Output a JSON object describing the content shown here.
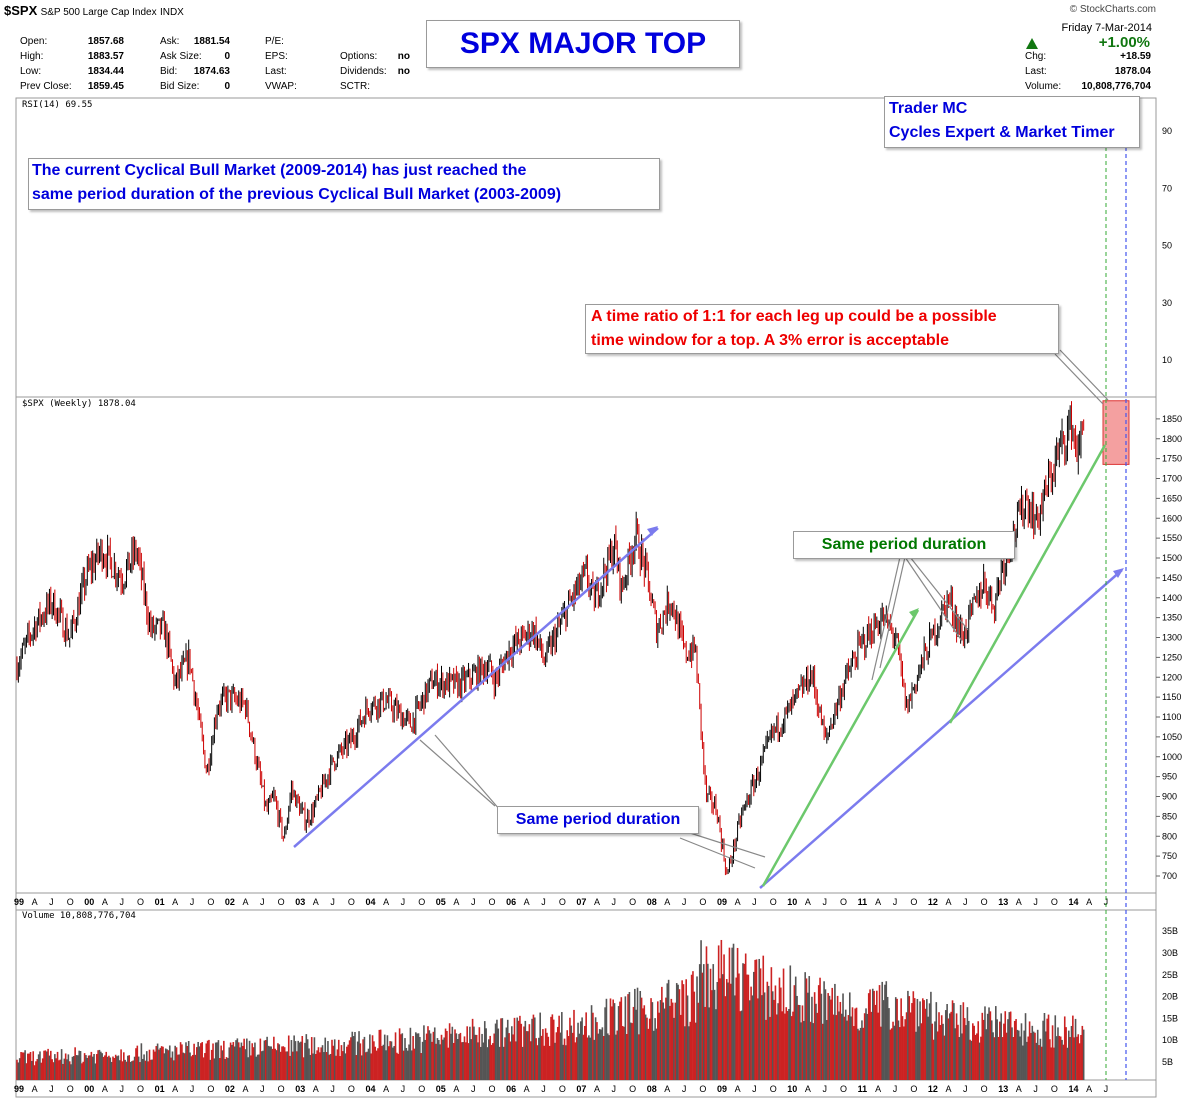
{
  "header": {
    "symbol": "$SPX",
    "name": "S&P 500 Large Cap Index",
    "exchange": "INDX",
    "credit": "© StockCharts.com",
    "date": "Friday 7-Mar-2014",
    "quote_left": [
      {
        "label": "Open:",
        "value": "1857.68"
      },
      {
        "label": "High:",
        "value": "1883.57"
      },
      {
        "label": "Low:",
        "value": "1834.44"
      },
      {
        "label": "Prev Close:",
        "value": "1859.45"
      }
    ],
    "quote_mid": [
      {
        "label": "Ask:",
        "value": "1881.54"
      },
      {
        "label": "Ask Size:",
        "value": "0"
      },
      {
        "label": "Bid:",
        "value": "1874.63"
      },
      {
        "label": "Bid Size:",
        "value": "0"
      }
    ],
    "quote_mid2": [
      {
        "label": "P/E:",
        "value": ""
      },
      {
        "label": "EPS:",
        "value": ""
      },
      {
        "label": "Last:",
        "value": ""
      },
      {
        "label": "VWAP:",
        "value": ""
      }
    ],
    "quote_mid3": [
      {
        "label": "Options:",
        "value": "no"
      },
      {
        "label": "Dividends:",
        "value": "no"
      },
      {
        "label": "SCTR:",
        "value": ""
      }
    ],
    "change_pct": "+1.00%",
    "quote_right": [
      {
        "label": "Chg:",
        "value": "+18.59"
      },
      {
        "label": "Last:",
        "value": "1878.04"
      },
      {
        "label": "Volume:",
        "value": "10,808,776,704"
      }
    ]
  },
  "annotations": {
    "main_title": "SPX MAJOR TOP",
    "trader_line1": "Trader MC",
    "trader_line2": "Cycles Expert & Market Timer",
    "cycle_line1": "The current Cyclical Bull Market (2009-2014) has just reached the",
    "cycle_line2": "same period duration of the previous Cyclical Bull Market (2003-2009)",
    "ratio_line1": "A time ratio of 1:1 for each leg up could be a possible",
    "ratio_line2": "time window for a top. A 3% error is acceptable",
    "same_period_blue": "Same period duration",
    "same_period_green": "Same period duration"
  },
  "colors": {
    "title_blue": "#0000dd",
    "ratio_red": "#ee0000",
    "green_text": "#007700",
    "trend_blue": "#7b7bee",
    "trend_green": "#6cc86c",
    "bar_up": "#000000",
    "bar_down": "#cc0000",
    "vol_up": "#555555",
    "vol_down": "#cc2222",
    "top_zone": "#f08080"
  },
  "chart_data": {
    "type": "ohlc-weekly",
    "price_label": "$SPX (Weekly) 1878.04",
    "rsi_label": "RSI(14) 69.55",
    "volume_label": "Volume 10,808,776,704",
    "price_ylim": [
      680,
      1880
    ],
    "price_ticks": [
      700,
      750,
      800,
      850,
      900,
      950,
      1000,
      1050,
      1100,
      1150,
      1200,
      1250,
      1300,
      1350,
      1400,
      1450,
      1500,
      1550,
      1600,
      1650,
      1700,
      1750,
      1800,
      1850
    ],
    "rsi_ticks": [
      10,
      30,
      50,
      70,
      90
    ],
    "volume_ticks": [
      "5B",
      "10B",
      "15B",
      "20B",
      "25B",
      "30B",
      "35B"
    ],
    "x_labels": [
      {
        "t": 1999.0,
        "s": "99",
        "b": true
      },
      {
        "t": 1999.25,
        "s": "A"
      },
      {
        "t": 1999.5,
        "s": "J"
      },
      {
        "t": 1999.75,
        "s": "O"
      },
      {
        "t": 2000.0,
        "s": "00",
        "b": true
      },
      {
        "t": 2000.25,
        "s": "A"
      },
      {
        "t": 2000.5,
        "s": "J"
      },
      {
        "t": 2000.75,
        "s": "O"
      },
      {
        "t": 2001.0,
        "s": "01",
        "b": true
      },
      {
        "t": 2001.25,
        "s": "A"
      },
      {
        "t": 2001.5,
        "s": "J"
      },
      {
        "t": 2001.75,
        "s": "O"
      },
      {
        "t": 2002.0,
        "s": "02",
        "b": true
      },
      {
        "t": 2002.25,
        "s": "A"
      },
      {
        "t": 2002.5,
        "s": "J"
      },
      {
        "t": 2002.75,
        "s": "O"
      },
      {
        "t": 2003.0,
        "s": "03",
        "b": true
      },
      {
        "t": 2003.25,
        "s": "A"
      },
      {
        "t": 2003.5,
        "s": "J"
      },
      {
        "t": 2003.75,
        "s": "O"
      },
      {
        "t": 2004.0,
        "s": "04",
        "b": true
      },
      {
        "t": 2004.25,
        "s": "A"
      },
      {
        "t": 2004.5,
        "s": "J"
      },
      {
        "t": 2004.75,
        "s": "O"
      },
      {
        "t": 2005.0,
        "s": "05",
        "b": true
      },
      {
        "t": 2005.25,
        "s": "A"
      },
      {
        "t": 2005.5,
        "s": "J"
      },
      {
        "t": 2005.75,
        "s": "O"
      },
      {
        "t": 2006.0,
        "s": "06",
        "b": true
      },
      {
        "t": 2006.25,
        "s": "A"
      },
      {
        "t": 2006.5,
        "s": "J"
      },
      {
        "t": 2006.75,
        "s": "O"
      },
      {
        "t": 2007.0,
        "s": "07",
        "b": true
      },
      {
        "t": 2007.25,
        "s": "A"
      },
      {
        "t": 2007.5,
        "s": "J"
      },
      {
        "t": 2007.75,
        "s": "O"
      },
      {
        "t": 2008.0,
        "s": "08",
        "b": true
      },
      {
        "t": 2008.25,
        "s": "A"
      },
      {
        "t": 2008.5,
        "s": "J"
      },
      {
        "t": 2008.75,
        "s": "O"
      },
      {
        "t": 2009.0,
        "s": "09",
        "b": true
      },
      {
        "t": 2009.25,
        "s": "A"
      },
      {
        "t": 2009.5,
        "s": "J"
      },
      {
        "t": 2009.75,
        "s": "O"
      },
      {
        "t": 2010.0,
        "s": "10",
        "b": true
      },
      {
        "t": 2010.25,
        "s": "A"
      },
      {
        "t": 2010.5,
        "s": "J"
      },
      {
        "t": 2010.75,
        "s": "O"
      },
      {
        "t": 2011.0,
        "s": "11",
        "b": true
      },
      {
        "t": 2011.25,
        "s": "A"
      },
      {
        "t": 2011.5,
        "s": "J"
      },
      {
        "t": 2011.75,
        "s": "O"
      },
      {
        "t": 2012.0,
        "s": "12",
        "b": true
      },
      {
        "t": 2012.25,
        "s": "A"
      },
      {
        "t": 2012.5,
        "s": "J"
      },
      {
        "t": 2012.75,
        "s": "O"
      },
      {
        "t": 2013.0,
        "s": "13",
        "b": true
      },
      {
        "t": 2013.25,
        "s": "A"
      },
      {
        "t": 2013.5,
        "s": "J"
      },
      {
        "t": 2013.75,
        "s": "O"
      },
      {
        "t": 2014.0,
        "s": "14",
        "b": true
      },
      {
        "t": 2014.25,
        "s": "A"
      },
      {
        "t": 2014.5,
        "s": "J"
      }
    ],
    "price_path": [
      [
        1999.0,
        1230
      ],
      [
        1999.25,
        1330
      ],
      [
        1999.5,
        1390
      ],
      [
        1999.75,
        1300
      ],
      [
        2000.0,
        1460
      ],
      [
        2000.2,
        1520
      ],
      [
        2000.5,
        1450
      ],
      [
        2000.7,
        1520
      ],
      [
        2000.9,
        1320
      ],
      [
        2001.1,
        1320
      ],
      [
        2001.25,
        1180
      ],
      [
        2001.45,
        1250
      ],
      [
        2001.7,
        960
      ],
      [
        2001.85,
        1130
      ],
      [
        2002.0,
        1150
      ],
      [
        2002.25,
        1130
      ],
      [
        2002.55,
        860
      ],
      [
        2002.65,
        900
      ],
      [
        2002.8,
        790
      ],
      [
        2002.9,
        920
      ],
      [
        2003.1,
        840
      ],
      [
        2003.2,
        860
      ],
      [
        2003.5,
        990
      ],
      [
        2003.75,
        1040
      ],
      [
        2004.0,
        1130
      ],
      [
        2004.25,
        1140
      ],
      [
        2004.6,
        1080
      ],
      [
        2004.9,
        1190
      ],
      [
        2005.3,
        1180
      ],
      [
        2005.7,
        1230
      ],
      [
        2005.8,
        1190
      ],
      [
        2006.0,
        1270
      ],
      [
        2006.35,
        1320
      ],
      [
        2006.5,
        1240
      ],
      [
        2006.9,
        1400
      ],
      [
        2007.1,
        1460
      ],
      [
        2007.2,
        1390
      ],
      [
        2007.5,
        1530
      ],
      [
        2007.6,
        1420
      ],
      [
        2007.8,
        1560
      ],
      [
        2007.95,
        1460
      ],
      [
        2008.1,
        1320
      ],
      [
        2008.3,
        1400
      ],
      [
        2008.5,
        1260
      ],
      [
        2008.65,
        1270
      ],
      [
        2008.8,
        900
      ],
      [
        2008.95,
        870
      ],
      [
        2009.1,
        700
      ],
      [
        2009.3,
        850
      ],
      [
        2009.5,
        940
      ],
      [
        2009.75,
        1060
      ],
      [
        2010.0,
        1120
      ],
      [
        2010.3,
        1210
      ],
      [
        2010.5,
        1040
      ],
      [
        2010.75,
        1180
      ],
      [
        2011.0,
        1280
      ],
      [
        2011.3,
        1350
      ],
      [
        2011.5,
        1300
      ],
      [
        2011.65,
        1120
      ],
      [
        2011.9,
        1250
      ],
      [
        2012.25,
        1400
      ],
      [
        2012.45,
        1300
      ],
      [
        2012.75,
        1440
      ],
      [
        2012.9,
        1380
      ],
      [
        2013.0,
        1470
      ],
      [
        2013.35,
        1650
      ],
      [
        2013.5,
        1590
      ],
      [
        2013.8,
        1760
      ],
      [
        2014.0,
        1840
      ],
      [
        2014.1,
        1750
      ],
      [
        2014.18,
        1878
      ]
    ]
  }
}
